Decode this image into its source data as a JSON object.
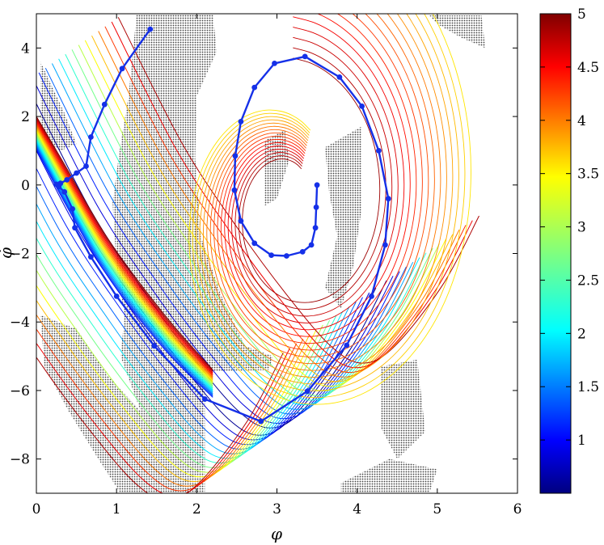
{
  "chart_data": {
    "type": "contour",
    "xlabel": "φ",
    "ylabel": "φ̇",
    "xlim": [
      0,
      6
    ],
    "ylim": [
      -9,
      5
    ],
    "x_ticks": [
      "0",
      "1",
      "2",
      "3",
      "4",
      "5",
      "6"
    ],
    "y_ticks": [
      "4",
      "2",
      "0",
      "−2",
      "−4",
      "−6",
      "−8"
    ],
    "x_tick_values": [
      0,
      1,
      2,
      3,
      4,
      5,
      6
    ],
    "y_tick_values": [
      4,
      2,
      0,
      -2,
      -4,
      -6,
      -8
    ],
    "colorbar": {
      "colormap": "jet",
      "range": [
        0.5,
        5
      ],
      "ticks": [
        "1",
        "1.5",
        "2",
        "2.5",
        "3",
        "3.5",
        "4",
        "4.5",
        "5"
      ],
      "tick_values": [
        1,
        1.5,
        2,
        2.5,
        3,
        3.5,
        4,
        4.5,
        5
      ]
    },
    "trajectory": {
      "color": "#1530e8",
      "points": [
        [
          1.42,
          4.55
        ],
        [
          1.07,
          3.4
        ],
        [
          0.85,
          2.35
        ],
        [
          0.68,
          1.4
        ],
        [
          0.62,
          0.55
        ],
        [
          0.5,
          0.35
        ],
        [
          0.38,
          0.15
        ],
        [
          0.3,
          0.05
        ],
        [
          0.25,
          0.02
        ],
        [
          0.28,
          -0.05
        ],
        [
          0.35,
          -0.2
        ],
        [
          0.45,
          -0.7
        ],
        [
          0.48,
          -1.25
        ],
        [
          0.68,
          -2.1
        ],
        [
          1.0,
          -3.25
        ],
        [
          1.47,
          -4.7
        ],
        [
          2.1,
          -6.25
        ],
        [
          2.8,
          -6.9
        ],
        [
          3.38,
          -6.02
        ],
        [
          3.87,
          -4.68
        ],
        [
          4.18,
          -3.25
        ],
        [
          4.35,
          -1.75
        ],
        [
          4.39,
          -0.4
        ],
        [
          4.27,
          1.0
        ],
        [
          4.06,
          2.3
        ],
        [
          3.78,
          3.15
        ],
        [
          3.35,
          3.75
        ],
        [
          2.97,
          3.55
        ],
        [
          2.72,
          2.85
        ],
        [
          2.55,
          1.85
        ],
        [
          2.48,
          0.85
        ],
        [
          2.47,
          -0.15
        ],
        [
          2.55,
          -1.05
        ],
        [
          2.72,
          -1.7
        ],
        [
          2.93,
          -2.05
        ],
        [
          3.12,
          -2.07
        ],
        [
          3.32,
          -1.95
        ],
        [
          3.43,
          -1.75
        ],
        [
          3.48,
          -1.25
        ],
        [
          3.49,
          -0.65
        ],
        [
          3.5,
          0.0
        ]
      ]
    },
    "valley_band": {
      "path": [
        [
          -0.3,
          1.9
        ],
        [
          0.8,
          -2.2
        ],
        [
          1.6,
          -4.6
        ],
        [
          2.2,
          -5.8
        ],
        [
          2.75,
          -6.2
        ],
        [
          3.3,
          -5.6
        ],
        [
          3.85,
          -4.2
        ],
        [
          4.2,
          -2.4
        ],
        [
          4.3,
          -0.6
        ],
        [
          4.15,
          1.2
        ],
        [
          3.8,
          2.7
        ],
        [
          3.3,
          3.4
        ],
        [
          2.85,
          3.15
        ],
        [
          2.6,
          2.2
        ],
        [
          2.6,
          0.9
        ],
        [
          2.75,
          -0.4
        ],
        [
          3.05,
          -1.2
        ],
        [
          3.35,
          -0.8
        ],
        [
          3.5,
          0.0
        ]
      ],
      "levels": [
        0.6,
        0.9,
        1.2,
        1.5,
        1.8,
        2.1,
        2.4,
        2.7,
        3.0,
        3.3,
        3.6,
        3.9,
        4.2,
        4.5,
        4.8
      ]
    }
  }
}
